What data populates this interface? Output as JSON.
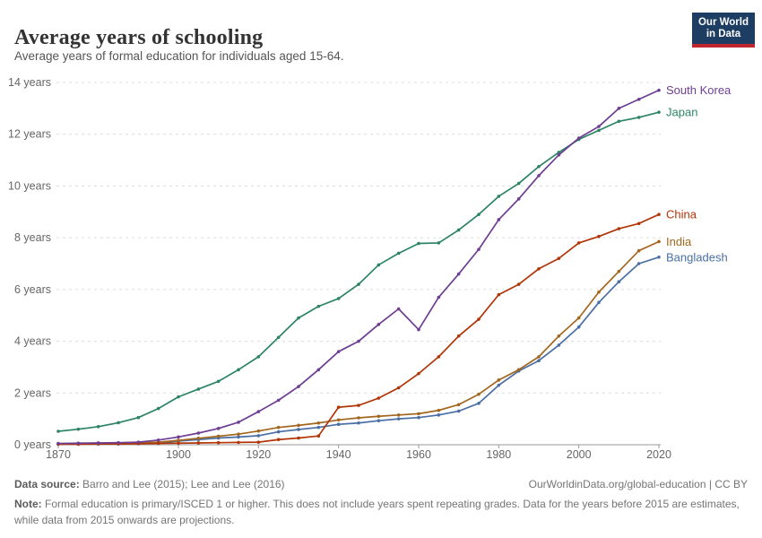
{
  "header": {
    "title": "Average years of schooling",
    "subtitle": "Average years of formal education for individuals aged 15-64.",
    "logo": {
      "line1": "Our World",
      "line2": "in Data",
      "bg_color": "#1d3d63",
      "accent_color": "#c0272d"
    }
  },
  "chart_data": {
    "type": "line",
    "title": "Average years of schooling",
    "xlabel": "",
    "ylabel": "years",
    "grid": "horizontal dashed",
    "legend_position": "right end-of-line labels",
    "xlim": [
      1868,
      2023
    ],
    "ylim": [
      0,
      14
    ],
    "x_ticks": [
      1870,
      1900,
      1920,
      1940,
      1960,
      1980,
      2000,
      2020
    ],
    "y_ticks": [
      0,
      2,
      4,
      6,
      8,
      10,
      12,
      14
    ],
    "y_tick_suffix": " years",
    "x": [
      1870,
      1875,
      1880,
      1885,
      1890,
      1895,
      1900,
      1905,
      1910,
      1915,
      1920,
      1925,
      1930,
      1935,
      1940,
      1945,
      1950,
      1955,
      1960,
      1965,
      1970,
      1975,
      1980,
      1985,
      1990,
      1995,
      2000,
      2005,
      2010,
      2015,
      2020
    ],
    "series": [
      {
        "name": "South Korea",
        "color": "#6d3e91",
        "values": [
          0.05,
          0.06,
          0.07,
          0.08,
          0.1,
          0.18,
          0.3,
          0.45,
          0.63,
          0.87,
          1.28,
          1.72,
          2.25,
          2.9,
          3.6,
          4.0,
          4.65,
          5.25,
          4.45,
          5.7,
          6.6,
          7.55,
          8.7,
          9.5,
          10.4,
          11.2,
          11.85,
          12.3,
          13.0,
          13.35,
          13.7
        ]
      },
      {
        "name": "Japan",
        "color": "#2c8465",
        "values": [
          0.52,
          0.6,
          0.7,
          0.85,
          1.05,
          1.4,
          1.85,
          2.15,
          2.45,
          2.9,
          3.4,
          4.15,
          4.9,
          5.35,
          5.65,
          6.2,
          6.95,
          7.4,
          7.78,
          7.8,
          8.3,
          8.9,
          9.6,
          10.1,
          10.75,
          11.3,
          11.8,
          12.15,
          12.5,
          12.65,
          12.85
        ]
      },
      {
        "name": "China",
        "color": "#b13507",
        "values": [
          0.02,
          0.02,
          0.03,
          0.03,
          0.04,
          0.05,
          0.06,
          0.07,
          0.08,
          0.09,
          0.1,
          0.2,
          0.26,
          0.34,
          1.45,
          1.52,
          1.8,
          2.2,
          2.75,
          3.4,
          4.2,
          4.85,
          5.8,
          6.2,
          6.8,
          7.2,
          7.8,
          8.05,
          8.35,
          8.55,
          8.9
        ]
      },
      {
        "name": "India",
        "color": "#a2671f",
        "values": [
          0.04,
          0.05,
          0.05,
          0.06,
          0.07,
          0.1,
          0.17,
          0.25,
          0.33,
          0.41,
          0.53,
          0.67,
          0.75,
          0.84,
          0.96,
          1.04,
          1.1,
          1.15,
          1.2,
          1.33,
          1.55,
          1.95,
          2.5,
          2.9,
          3.4,
          4.2,
          4.9,
          5.9,
          6.7,
          7.5,
          7.85
        ]
      },
      {
        "name": "Bangladesh",
        "color": "#4a6fa5",
        "values": [
          0.03,
          0.03,
          0.04,
          0.04,
          0.05,
          0.07,
          0.14,
          0.2,
          0.26,
          0.3,
          0.35,
          0.5,
          0.59,
          0.67,
          0.79,
          0.84,
          0.93,
          1.0,
          1.05,
          1.15,
          1.3,
          1.6,
          2.3,
          2.85,
          3.25,
          3.85,
          4.55,
          5.5,
          6.3,
          7.0,
          7.25
        ]
      }
    ]
  },
  "footer": {
    "datasource_label": "Data source:",
    "datasource_value": " Barro and Lee (2015); Lee and Lee (2016)",
    "link": "OurWorldinData.org/global-education | CC BY",
    "note_label": "Note:",
    "note_value": " Formal education is primary/ISCED 1 or higher. This does not include years spent repeating grades. Data for the years before 2015 are estimates, while data from 2015 onwards are projections."
  }
}
